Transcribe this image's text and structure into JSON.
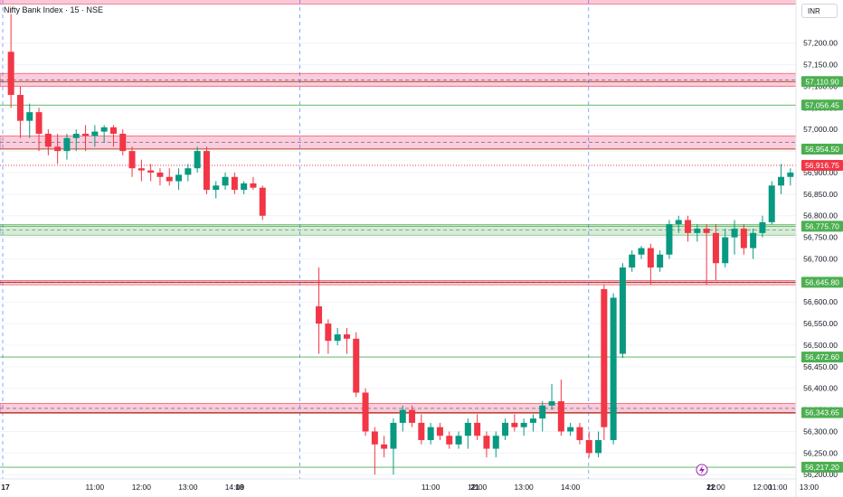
{
  "header": {
    "title": "Nifty Bank Index · 15 · NSE",
    "currency": "INR"
  },
  "colors": {
    "up": "#089981",
    "down": "#f23645",
    "support_line": "#4caf50",
    "resistance_line": "#b71c1c",
    "support_zone": "#c8e6c9",
    "resistance_zone": "#f8bbd0",
    "zone_line_dark": "#a1421c",
    "day_separator": "#2962ff",
    "last_price": "#f23645",
    "grid": "#f0f3fa"
  },
  "chart_data": {
    "type": "candlestick",
    "title": "Nifty Bank Index · 15 · NSE",
    "ylim": [
      56190,
      57300
    ],
    "y_ticks": [
      57200,
      57150,
      57100,
      57050,
      57000,
      56950,
      56900,
      56850,
      56800,
      56750,
      56700,
      56650,
      56600,
      56550,
      56500,
      56450,
      56400,
      56350,
      56300,
      56250,
      56200
    ],
    "y_tick_labels": [
      "57,200.00",
      "57,150.00",
      "57,100.00",
      "57,050.00",
      "57,000.00",
      "56,950.00",
      "56,900.00",
      "56,850.00",
      "56,800.00",
      "56,750.00",
      "56,700.00",
      "56,650.00",
      "56,600.00",
      "56,550.00",
      "56,500.00",
      "56,450.00",
      "56,400.00",
      "56,350.00",
      "56,300.00",
      "56,250.00",
      "56,200.00"
    ],
    "x_labels": [
      {
        "bar": 0,
        "text": "17",
        "bold": true
      },
      {
        "bar": 9,
        "text": "11:00"
      },
      {
        "bar": 14,
        "text": "12:00"
      },
      {
        "bar": 19,
        "text": "13:00"
      },
      {
        "bar": 24,
        "text": "14:00"
      },
      {
        "bar": 31.5,
        "text": "18",
        "bold": true
      },
      {
        "bar": 40,
        "text": "11:00"
      },
      {
        "bar": 45,
        "text": "12:00"
      },
      {
        "bar": 50,
        "text": "13:00"
      },
      {
        "bar": 55,
        "text": "14:00"
      },
      {
        "bar": 62.5,
        "text": "21",
        "bold": true
      },
      {
        "bar": 71,
        "text": "11:00"
      },
      {
        "bar": 76,
        "text": "12:00"
      },
      {
        "bar": 81,
        "text": "13:00"
      },
      {
        "bar": 86,
        "text": "14:00"
      },
      {
        "bar": 93.5,
        "text": "22",
        "bold": true
      },
      {
        "bar": 101,
        "text": "11:00"
      }
    ],
    "day_separators": [
      0,
      31.5,
      62.5
    ],
    "candles": [
      [
        57180,
        57280,
        57050,
        57080
      ],
      [
        57080,
        57100,
        56980,
        57020
      ],
      [
        57020,
        57060,
        56980,
        57040
      ],
      [
        57040,
        57050,
        56950,
        56990
      ],
      [
        56990,
        57000,
        56940,
        56960
      ],
      [
        56960,
        56990,
        56920,
        56950
      ],
      [
        56950,
        56990,
        56930,
        56980
      ],
      [
        56980,
        57000,
        56950,
        56990
      ],
      [
        56990,
        57010,
        56950,
        56985
      ],
      [
        56985,
        57010,
        56960,
        56995
      ],
      [
        56995,
        57010,
        56970,
        57005
      ],
      [
        57005,
        57010,
        56960,
        56990
      ],
      [
        56990,
        57000,
        56940,
        56950
      ],
      [
        56950,
        56960,
        56890,
        56910
      ],
      [
        56910,
        56930,
        56880,
        56905
      ],
      [
        56905,
        56920,
        56880,
        56900
      ],
      [
        56900,
        56910,
        56870,
        56890
      ],
      [
        56890,
        56910,
        56870,
        56880
      ],
      [
        56880,
        56910,
        56860,
        56895
      ],
      [
        56895,
        56920,
        56880,
        56910
      ],
      [
        56910,
        56960,
        56900,
        56950
      ],
      [
        56950,
        56960,
        56850,
        56860
      ],
      [
        56860,
        56880,
        56840,
        56870
      ],
      [
        56870,
        56900,
        56860,
        56890
      ],
      [
        56890,
        56900,
        56850,
        56860
      ],
      [
        56860,
        56880,
        56850,
        56875
      ],
      [
        56875,
        56890,
        56860,
        56865
      ],
      [
        56865,
        56870,
        56790,
        56800
      ],
      [
        56590,
        56680,
        56480,
        56550
      ],
      [
        56550,
        56560,
        56480,
        56510
      ],
      [
        56510,
        56540,
        56500,
        56525
      ],
      [
        56525,
        56540,
        56480,
        56515
      ],
      [
        56515,
        56530,
        56380,
        56390
      ],
      [
        56390,
        56400,
        56290,
        56300
      ],
      [
        56300,
        56310,
        56200,
        56270
      ],
      [
        56270,
        56290,
        56240,
        56260
      ],
      [
        56260,
        56330,
        56200,
        56320
      ],
      [
        56320,
        56360,
        56300,
        56350
      ],
      [
        56350,
        56360,
        56310,
        56320
      ],
      [
        56320,
        56340,
        56270,
        56280
      ],
      [
        56280,
        56320,
        56270,
        56310
      ],
      [
        56310,
        56320,
        56280,
        56290
      ],
      [
        56290,
        56300,
        56260,
        56270
      ],
      [
        56270,
        56300,
        56260,
        56290
      ],
      [
        56290,
        56330,
        56260,
        56320
      ],
      [
        56320,
        56340,
        56280,
        56290
      ],
      [
        56290,
        56300,
        56240,
        56260
      ],
      [
        56260,
        56300,
        56240,
        56290
      ],
      [
        56290,
        56330,
        56280,
        56320
      ],
      [
        56320,
        56340,
        56300,
        56310
      ],
      [
        56310,
        56330,
        56290,
        56320
      ],
      [
        56320,
        56340,
        56300,
        56330
      ],
      [
        56330,
        56370,
        56300,
        56360
      ],
      [
        56360,
        56410,
        56350,
        56370
      ],
      [
        56370,
        56420,
        56290,
        56300
      ],
      [
        56300,
        56320,
        56290,
        56310
      ],
      [
        56310,
        56320,
        56270,
        56280
      ],
      [
        56280,
        56300,
        56240,
        56250
      ],
      [
        56250,
        56300,
        56240,
        56280
      ],
      [
        56630,
        56640,
        56280,
        56310
      ],
      [
        56280,
        56620,
        56270,
        56610
      ],
      [
        56480,
        56690,
        56470,
        56680
      ],
      [
        56680,
        56720,
        56670,
        56710
      ],
      [
        56710,
        56730,
        56700,
        56725
      ],
      [
        56725,
        56735,
        56640,
        56680
      ],
      [
        56680,
        56720,
        56670,
        56710
      ],
      [
        56710,
        56790,
        56700,
        56780
      ],
      [
        56780,
        56800,
        56760,
        56790
      ],
      [
        56790,
        56800,
        56740,
        56760
      ],
      [
        56760,
        56780,
        56740,
        56770
      ],
      [
        56770,
        56780,
        56640,
        56760
      ],
      [
        56760,
        56780,
        56650,
        56690
      ],
      [
        56690,
        56770,
        56680,
        56750
      ],
      [
        56750,
        56790,
        56710,
        56770
      ],
      [
        56770,
        56780,
        56710,
        56725
      ],
      [
        56725,
        56770,
        56700,
        56760
      ],
      [
        56760,
        56800,
        56750,
        56785
      ],
      [
        56785,
        56880,
        56780,
        56870
      ],
      [
        56870,
        56920,
        56850,
        56890
      ],
      [
        56890,
        56910,
        56870,
        56900
      ],
      [
        56900,
        56910,
        56860,
        56880
      ],
      [
        56880,
        56890,
        56770,
        56780
      ],
      [
        56780,
        56810,
        56760,
        56790
      ],
      [
        56790,
        56820,
        56760,
        56800
      ],
      [
        56800,
        56830,
        56780,
        56820
      ],
      [
        56820,
        56870,
        56810,
        56860
      ],
      [
        56860,
        56950,
        56850,
        56930
      ],
      [
        56930,
        56970,
        56900,
        56960
      ],
      [
        56960,
        56980,
        56890,
        56910
      ]
    ],
    "levels": [
      {
        "price": 57110.9,
        "label": "57,110.90",
        "kind": "resistance",
        "zone": [
          57100,
          57130
        ]
      },
      {
        "price": 57056.45,
        "label": "57,056.45",
        "kind": "support"
      },
      {
        "price": 56954.5,
        "label": "56,954.50",
        "kind": "resistance",
        "zone": [
          56955,
          56985
        ]
      },
      {
        "price": 56916.75,
        "label": "56,916.75",
        "kind": "last"
      },
      {
        "price": 56775.7,
        "label": "56,775.70",
        "kind": "support",
        "zone": [
          56755,
          56780
        ]
      },
      {
        "price": 56645.8,
        "label": "56,645.80",
        "kind": "resistance",
        "zone": [
          56640,
          56650
        ]
      },
      {
        "price": 56472.6,
        "label": "56,472.60",
        "kind": "support"
      },
      {
        "price": 56343.65,
        "label": "56,343.65",
        "kind": "resistance",
        "zone": [
          56342,
          56365
        ]
      },
      {
        "price": 56217.2,
        "label": "56,217.20",
        "kind": "support"
      }
    ],
    "top_zone": [
      57290,
      57320
    ]
  }
}
